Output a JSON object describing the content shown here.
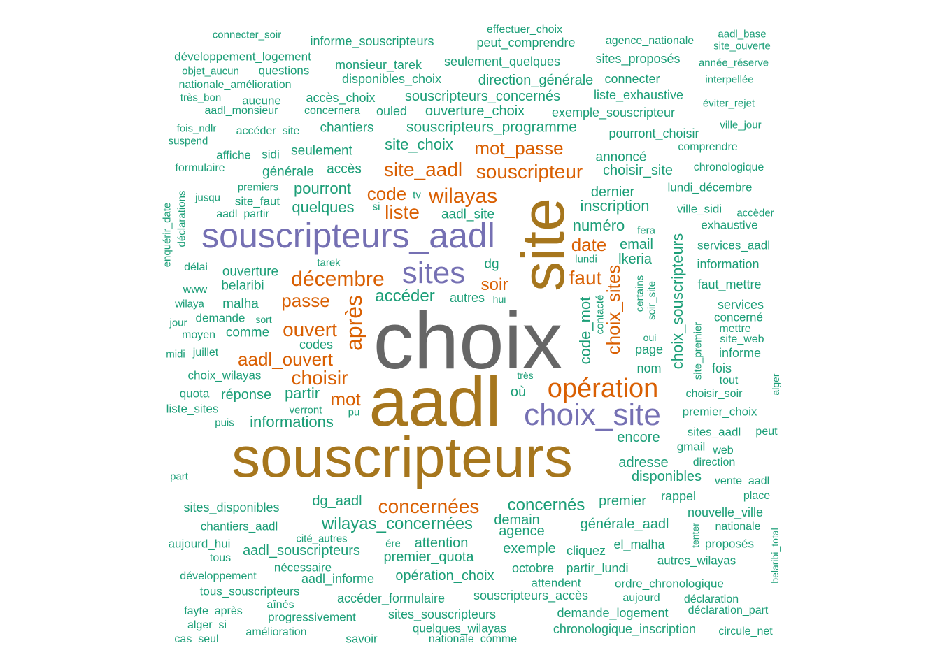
{
  "palette": [
    "#1b9e77",
    "#d95f02",
    "#7570b3",
    "#a6761d",
    "#666666"
  ],
  "words": [
    {
      "text": "choix",
      "c": 4
    },
    {
      "text": "aadl",
      "c": 3
    },
    {
      "text": "site",
      "c": 3
    },
    {
      "text": "souscripteurs",
      "c": 3
    },
    {
      "text": "souscripteurs_aadl",
      "c": 2
    },
    {
      "text": "sites",
      "c": 2
    },
    {
      "text": "choix_site",
      "c": 2
    },
    {
      "text": "opération",
      "c": 1
    },
    {
      "text": "décembre",
      "c": 1
    },
    {
      "text": "après",
      "c": 1
    },
    {
      "text": "wilayas",
      "c": 1
    },
    {
      "text": "site_aadl",
      "c": 1
    },
    {
      "text": "souscripteur",
      "c": 1
    },
    {
      "text": "mot_passe",
      "c": 1
    },
    {
      "text": "concernées",
      "c": 1
    },
    {
      "text": "ouvert",
      "c": 1
    },
    {
      "text": "aadl_ouvert",
      "c": 1
    },
    {
      "text": "choisir",
      "c": 1
    },
    {
      "text": "passe",
      "c": 1
    },
    {
      "text": "liste",
      "c": 1
    },
    {
      "text": "code",
      "c": 1
    },
    {
      "text": "mot",
      "c": 1
    },
    {
      "text": "faut",
      "c": 1
    },
    {
      "text": "date",
      "c": 1
    },
    {
      "text": "soir",
      "c": 1
    },
    {
      "text": "choix_sites",
      "c": 1
    },
    {
      "text": "choix_souscripteurs",
      "c": 0
    },
    {
      "text": "code_mot",
      "c": 0
    },
    {
      "text": "accéder",
      "c": 0
    },
    {
      "text": "wilayas_concernées",
      "c": 0
    },
    {
      "text": "concernés",
      "c": 0
    },
    {
      "text": "informations",
      "c": 0
    },
    {
      "text": "site_choix",
      "c": 0
    },
    {
      "text": "souscripteurs_programme",
      "c": 0
    },
    {
      "text": "souscripteurs_concernés",
      "c": 0
    },
    {
      "text": "ouverture_choix",
      "c": 0
    },
    {
      "text": "direction_générale",
      "c": 0
    },
    {
      "text": "inscription",
      "c": 0
    },
    {
      "text": "numéro",
      "c": 0
    },
    {
      "text": "pourront",
      "c": 0
    },
    {
      "text": "quelques",
      "c": 0
    },
    {
      "text": "partir",
      "c": 0
    },
    {
      "text": "premier_quota",
      "c": 0
    },
    {
      "text": "opération_choix",
      "c": 0
    },
    {
      "text": "aadl_souscripteurs",
      "c": 0
    },
    {
      "text": "générale_aadl",
      "c": 0
    },
    {
      "text": "exemple",
      "c": 0
    },
    {
      "text": "agence",
      "c": 0
    },
    {
      "text": "demain",
      "c": 0
    },
    {
      "text": "attention",
      "c": 0
    },
    {
      "text": "dg_aadl",
      "c": 0
    },
    {
      "text": "adresse",
      "c": 0
    },
    {
      "text": "disponibles",
      "c": 0
    },
    {
      "text": "encore",
      "c": 0
    },
    {
      "text": "premier",
      "c": 0
    },
    {
      "text": "email",
      "c": 0
    },
    {
      "text": "lkeria",
      "c": 0
    },
    {
      "text": "page",
      "c": 0
    },
    {
      "text": "nom",
      "c": 0
    },
    {
      "text": "dernier",
      "c": 0
    },
    {
      "text": "choisir_site",
      "c": 0
    },
    {
      "text": "annoncé",
      "c": 0
    },
    {
      "text": "aadl_site",
      "c": 0
    },
    {
      "text": "ouverture",
      "c": 0
    },
    {
      "text": "belaribi",
      "c": 0
    },
    {
      "text": "malha",
      "c": 0
    },
    {
      "text": "comme",
      "c": 0
    },
    {
      "text": "codes",
      "c": 0
    },
    {
      "text": "réponse",
      "c": 0
    },
    {
      "text": "où",
      "c": 0
    },
    {
      "text": "dg",
      "c": 0
    },
    {
      "text": "autres",
      "c": 0
    },
    {
      "text": "générale",
      "c": 0
    },
    {
      "text": "accès",
      "c": 0
    },
    {
      "text": "seulement",
      "c": 0
    },
    {
      "text": "chantiers",
      "c": 0
    },
    {
      "text": "informe_souscripteurs",
      "c": 0
    },
    {
      "text": "monsieur_tarek",
      "c": 0
    },
    {
      "text": "seulement_quelques",
      "c": 0
    },
    {
      "text": "disponibles_choix",
      "c": 0
    },
    {
      "text": "accès_choix",
      "c": 0
    },
    {
      "text": "ouled",
      "c": 0
    },
    {
      "text": "concernera",
      "c": 0
    },
    {
      "text": "peut_comprendre",
      "c": 0
    },
    {
      "text": "effectuer_choix",
      "c": 0
    },
    {
      "text": "agence_nationale",
      "c": 0
    },
    {
      "text": "sites_proposés",
      "c": 0
    },
    {
      "text": "connecter",
      "c": 0
    },
    {
      "text": "liste_exhaustive",
      "c": 0
    },
    {
      "text": "exemple_souscripteur",
      "c": 0
    },
    {
      "text": "pourront_choisir",
      "c": 0
    },
    {
      "text": "comprendre",
      "c": 0
    },
    {
      "text": "chronologique",
      "c": 0
    },
    {
      "text": "lundi_décembre",
      "c": 0
    },
    {
      "text": "ville_sidi",
      "c": 0
    },
    {
      "text": "exhaustive",
      "c": 0
    },
    {
      "text": "services_aadl",
      "c": 0
    },
    {
      "text": "information",
      "c": 0
    },
    {
      "text": "faut_mettre",
      "c": 0
    },
    {
      "text": "services",
      "c": 0
    },
    {
      "text": "concerné",
      "c": 0
    },
    {
      "text": "mettre",
      "c": 0
    },
    {
      "text": "site_web",
      "c": 0
    },
    {
      "text": "informe",
      "c": 0
    },
    {
      "text": "fois",
      "c": 0
    },
    {
      "text": "tout",
      "c": 0
    },
    {
      "text": "choisir_soir",
      "c": 0
    },
    {
      "text": "premier_choix",
      "c": 0
    },
    {
      "text": "sites_aadl",
      "c": 0
    },
    {
      "text": "peut",
      "c": 0
    },
    {
      "text": "gmail",
      "c": 0
    },
    {
      "text": "web",
      "c": 0
    },
    {
      "text": "direction",
      "c": 0
    },
    {
      "text": "vente_aadl",
      "c": 0
    },
    {
      "text": "rappel",
      "c": 0
    },
    {
      "text": "place",
      "c": 0
    },
    {
      "text": "nouvelle_ville",
      "c": 0
    },
    {
      "text": "nationale",
      "c": 0
    },
    {
      "text": "proposés",
      "c": 0
    },
    {
      "text": "autres_wilayas",
      "c": 0
    },
    {
      "text": "el_malha",
      "c": 0
    },
    {
      "text": "cliquez",
      "c": 0
    },
    {
      "text": "partir_lundi",
      "c": 0
    },
    {
      "text": "octobre",
      "c": 0
    },
    {
      "text": "attendent",
      "c": 0
    },
    {
      "text": "ordre_chronologique",
      "c": 0
    },
    {
      "text": "aujourd",
      "c": 0
    },
    {
      "text": "déclaration",
      "c": 0
    },
    {
      "text": "déclaration_part",
      "c": 0
    },
    {
      "text": "circule_net",
      "c": 0
    },
    {
      "text": "demande_logement",
      "c": 0
    },
    {
      "text": "chronologique_inscription",
      "c": 0
    },
    {
      "text": "souscripteurs_accès",
      "c": 0
    },
    {
      "text": "sites_souscripteurs",
      "c": 0
    },
    {
      "text": "quelques_wilayas",
      "c": 0
    },
    {
      "text": "nationale_comme",
      "c": 0
    },
    {
      "text": "savoir",
      "c": 0
    },
    {
      "text": "accéder_formulaire",
      "c": 0
    },
    {
      "text": "progressivement",
      "c": 0
    },
    {
      "text": "amélioration",
      "c": 0
    },
    {
      "text": "aînés",
      "c": 0
    },
    {
      "text": "aadl_informe",
      "c": 0
    },
    {
      "text": "nécessaire",
      "c": 0
    },
    {
      "text": "tous_souscripteurs",
      "c": 0
    },
    {
      "text": "développement",
      "c": 0
    },
    {
      "text": "fayte_après",
      "c": 0
    },
    {
      "text": "alger_si",
      "c": 0
    },
    {
      "text": "cas_seul",
      "c": 0
    },
    {
      "text": "tous",
      "c": 0
    },
    {
      "text": "aujourd_hui",
      "c": 0
    },
    {
      "text": "cité_autres",
      "c": 0
    },
    {
      "text": "ére",
      "c": 0
    },
    {
      "text": "chantiers_aadl",
      "c": 0
    },
    {
      "text": "sites_disponibles",
      "c": 0
    },
    {
      "text": "part",
      "c": 0
    },
    {
      "text": "puis",
      "c": 0
    },
    {
      "text": "pu",
      "c": 0
    },
    {
      "text": "verront",
      "c": 0
    },
    {
      "text": "liste_sites",
      "c": 0
    },
    {
      "text": "quota",
      "c": 0
    },
    {
      "text": "choix_wilayas",
      "c": 0
    },
    {
      "text": "midi",
      "c": 0
    },
    {
      "text": "juillet",
      "c": 0
    },
    {
      "text": "moyen",
      "c": 0
    },
    {
      "text": "jour",
      "c": 0
    },
    {
      "text": "demande",
      "c": 0
    },
    {
      "text": "sort",
      "c": 0
    },
    {
      "text": "wilaya",
      "c": 0
    },
    {
      "text": "www",
      "c": 0
    },
    {
      "text": "délai",
      "c": 0
    },
    {
      "text": "tarek",
      "c": 0
    },
    {
      "text": "aadl_partir",
      "c": 0
    },
    {
      "text": "site_faut",
      "c": 0
    },
    {
      "text": "jusqu",
      "c": 0
    },
    {
      "text": "premiers",
      "c": 0
    },
    {
      "text": "si",
      "c": 0
    },
    {
      "text": "tv",
      "c": 0
    },
    {
      "text": "formulaire",
      "c": 0
    },
    {
      "text": "affiche",
      "c": 0
    },
    {
      "text": "sidi",
      "c": 0
    },
    {
      "text": "suspend",
      "c": 0
    },
    {
      "text": "fois_ndlr",
      "c": 0
    },
    {
      "text": "accéder_site",
      "c": 0
    },
    {
      "text": "aadl_monsieur",
      "c": 0
    },
    {
      "text": "très_bon",
      "c": 0
    },
    {
      "text": "aucune",
      "c": 0
    },
    {
      "text": "nationale_amélioration",
      "c": 0
    },
    {
      "text": "objet_aucun",
      "c": 0
    },
    {
      "text": "questions",
      "c": 0
    },
    {
      "text": "développement_logement",
      "c": 0
    },
    {
      "text": "connecter_soir",
      "c": 0
    },
    {
      "text": "aadl_base",
      "c": 0
    },
    {
      "text": "site_ouverte",
      "c": 0
    },
    {
      "text": "année_réserve",
      "c": 0
    },
    {
      "text": "interpellée",
      "c": 0
    },
    {
      "text": "éviter_rejet",
      "c": 0
    },
    {
      "text": "ville_jour",
      "c": 0
    },
    {
      "text": "fera",
      "c": 0
    },
    {
      "text": "accèder",
      "c": 0
    },
    {
      "text": "lundi",
      "c": 0
    },
    {
      "text": "hui",
      "c": 0
    },
    {
      "text": "très",
      "c": 0
    },
    {
      "text": "oui",
      "c": 0
    },
    {
      "text": "contacté",
      "c": 0
    },
    {
      "text": "certains",
      "c": 0
    },
    {
      "text": "soir_site",
      "c": 0
    },
    {
      "text": "site_premier",
      "c": 0
    },
    {
      "text": "enquérir_date",
      "c": 0
    },
    {
      "text": "déclarations",
      "c": 0
    },
    {
      "text": "alger",
      "c": 0
    },
    {
      "text": "belaribi_total",
      "c": 0
    },
    {
      "text": "tenter",
      "c": 0
    }
  ]
}
